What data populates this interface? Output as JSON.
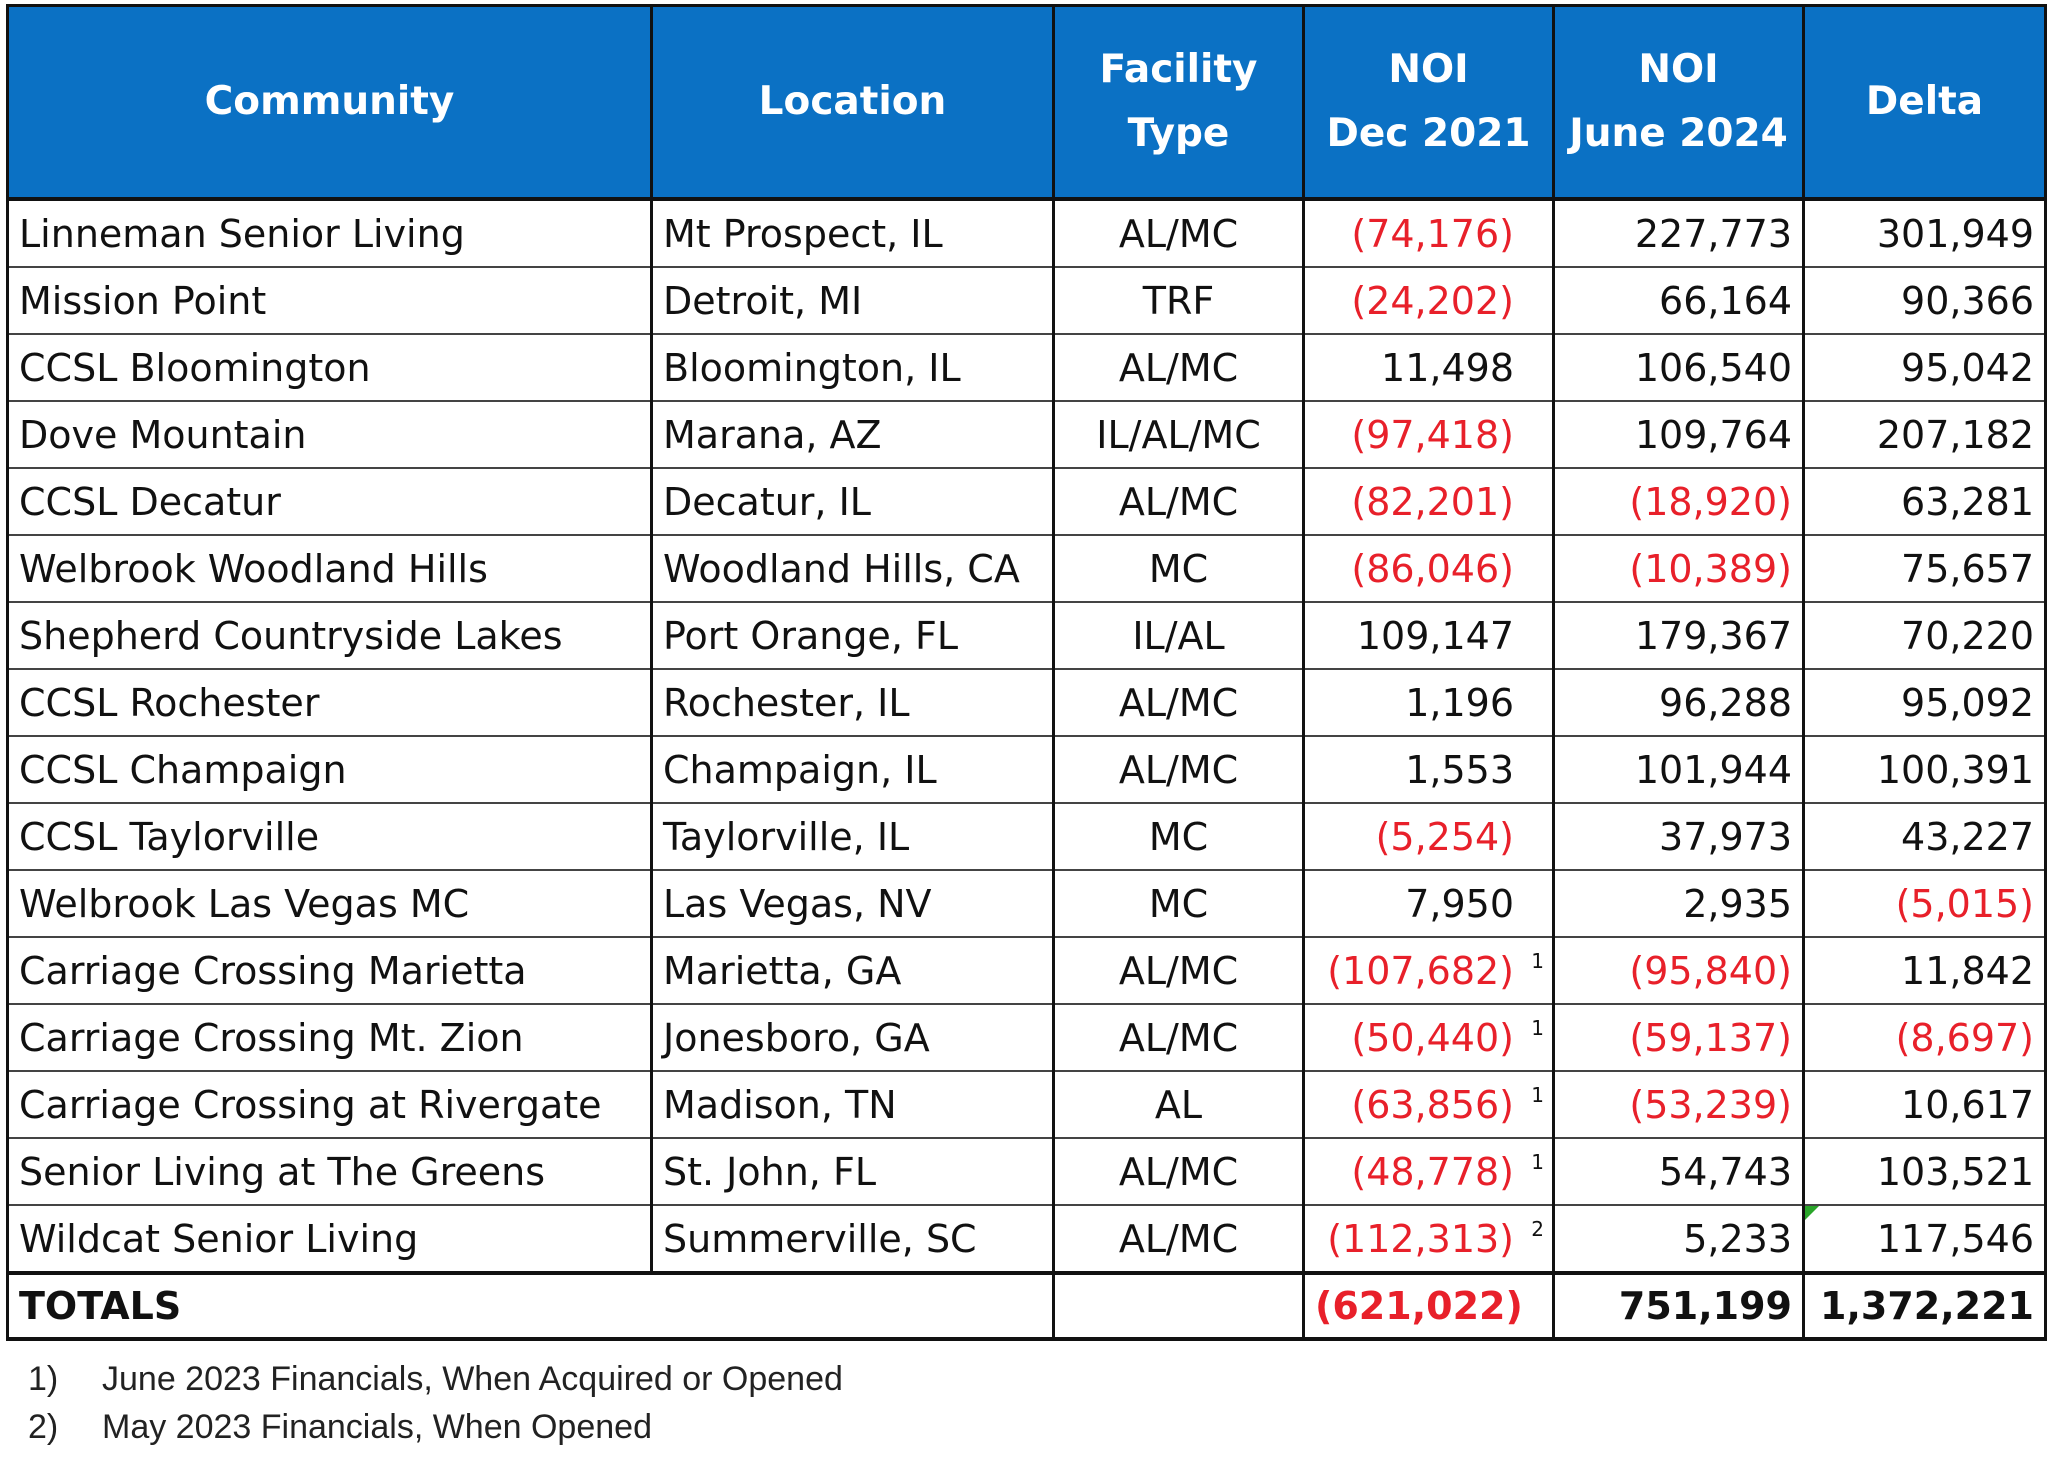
{
  "table": {
    "headers": {
      "community": "Community",
      "location": "Location",
      "facility_type_line1": "Facility",
      "facility_type_line2": "Type",
      "noi_dec_line1": "NOI",
      "noi_dec_line2": "Dec 2021",
      "noi_june_line1": "NOI",
      "noi_june_line2": "June 2024",
      "delta": "Delta"
    },
    "rows": [
      {
        "community": "Linneman Senior Living",
        "location": "Mt Prospect, IL",
        "type": "AL/MC",
        "dec": "(74,176)",
        "dec_neg": true,
        "note": "",
        "june": "227,773",
        "june_neg": false,
        "delta": "301,949",
        "delta_neg": false
      },
      {
        "community": "Mission Point",
        "location": "Detroit, MI",
        "type": "TRF",
        "dec": "(24,202)",
        "dec_neg": true,
        "note": "",
        "june": "66,164",
        "june_neg": false,
        "delta": "90,366",
        "delta_neg": false
      },
      {
        "community": "CCSL Bloomington",
        "location": "Bloomington, IL",
        "type": "AL/MC",
        "dec": "11,498",
        "dec_neg": false,
        "note": "",
        "june": "106,540",
        "june_neg": false,
        "delta": "95,042",
        "delta_neg": false
      },
      {
        "community": "Dove Mountain",
        "location": "Marana, AZ",
        "type": "IL/AL/MC",
        "dec": "(97,418)",
        "dec_neg": true,
        "note": "",
        "june": "109,764",
        "june_neg": false,
        "delta": "207,182",
        "delta_neg": false
      },
      {
        "community": "CCSL Decatur",
        "location": "Decatur, IL",
        "type": "AL/MC",
        "dec": "(82,201)",
        "dec_neg": true,
        "note": "",
        "june": "(18,920)",
        "june_neg": true,
        "delta": "63,281",
        "delta_neg": false
      },
      {
        "community": "Welbrook Woodland Hills",
        "location": "Woodland Hills, CA",
        "type": "MC",
        "dec": "(86,046)",
        "dec_neg": true,
        "note": "",
        "june": "(10,389)",
        "june_neg": true,
        "delta": "75,657",
        "delta_neg": false
      },
      {
        "community": "Shepherd Countryside Lakes",
        "location": "Port Orange, FL",
        "type": "IL/AL",
        "dec": "109,147",
        "dec_neg": false,
        "note": "",
        "june": "179,367",
        "june_neg": false,
        "delta": "70,220",
        "delta_neg": false
      },
      {
        "community": "CCSL Rochester",
        "location": "Rochester, IL",
        "type": "AL/MC",
        "dec": "1,196",
        "dec_neg": false,
        "note": "",
        "june": "96,288",
        "june_neg": false,
        "delta": "95,092",
        "delta_neg": false
      },
      {
        "community": "CCSL Champaign",
        "location": "Champaign, IL",
        "type": "AL/MC",
        "dec": "1,553",
        "dec_neg": false,
        "note": "",
        "june": "101,944",
        "june_neg": false,
        "delta": "100,391",
        "delta_neg": false
      },
      {
        "community": "CCSL Taylorville",
        "location": "Taylorville, IL",
        "type": "MC",
        "dec": "(5,254)",
        "dec_neg": true,
        "note": "",
        "june": "37,973",
        "june_neg": false,
        "delta": "43,227",
        "delta_neg": false
      },
      {
        "community": "Welbrook Las Vegas MC",
        "location": "Las Vegas, NV",
        "type": "MC",
        "dec": "7,950",
        "dec_neg": false,
        "note": "",
        "june": "2,935",
        "june_neg": false,
        "delta": "(5,015)",
        "delta_neg": true
      },
      {
        "community": "Carriage Crossing Marietta",
        "location": "Marietta, GA",
        "type": "AL/MC",
        "dec": "(107,682)",
        "dec_neg": true,
        "note": "1",
        "june": "(95,840)",
        "june_neg": true,
        "delta": "11,842",
        "delta_neg": false
      },
      {
        "community": "Carriage Crossing Mt. Zion",
        "location": "Jonesboro,  GA",
        "type": "AL/MC",
        "dec": "(50,440)",
        "dec_neg": true,
        "note": "1",
        "june": "(59,137)",
        "june_neg": true,
        "delta": "(8,697)",
        "delta_neg": true
      },
      {
        "community": "Carriage Crossing at Rivergate",
        "location": "Madison, TN",
        "type": "AL",
        "dec": "(63,856)",
        "dec_neg": true,
        "note": "1",
        "june": "(53,239)",
        "june_neg": true,
        "delta": "10,617",
        "delta_neg": false
      },
      {
        "community": "Senior Living at The Greens",
        "location": "St. John, FL",
        "type": "AL/MC",
        "dec": "(48,778)",
        "dec_neg": true,
        "note": "1",
        "june": "54,743",
        "june_neg": false,
        "delta": "103,521",
        "delta_neg": false
      },
      {
        "community": "Wildcat Senior Living",
        "location": "Summerville, SC",
        "type": "AL/MC",
        "dec": "(112,313)",
        "dec_neg": true,
        "note": "2",
        "june": "5,233",
        "june_neg": false,
        "delta": "117,546",
        "delta_neg": false,
        "delta_comment_marker": true
      }
    ],
    "totals": {
      "label": "TOTALS",
      "dec": "(621,022)",
      "june": "751,199",
      "delta": "1,372,221"
    }
  },
  "footnotes": [
    {
      "num": "1)",
      "text": "June 2023 Financials, When Acquired or Opened"
    },
    {
      "num": "2)",
      "text": "May 2023 Financials, When Opened"
    }
  ],
  "colors": {
    "header_bg": "#0b71c4",
    "header_text": "#ffffff",
    "negative": "#e8202a",
    "comment_marker": "#2aa52a"
  }
}
